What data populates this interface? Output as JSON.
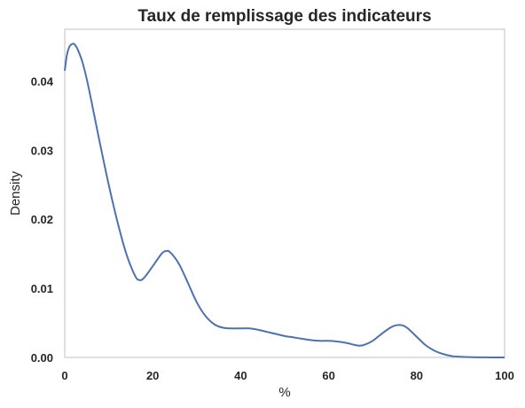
{
  "chart_data": {
    "type": "line",
    "title": "Taux de remplissage des indicateurs",
    "xlabel": "%",
    "ylabel": "Density",
    "xlim": [
      0,
      100
    ],
    "ylim": [
      0,
      0.0475
    ],
    "grid": false,
    "xticks": [
      0,
      20,
      40,
      60,
      80,
      100
    ],
    "xtick_labels": [
      "0",
      "20",
      "40",
      "60",
      "80",
      "100"
    ],
    "yticks": [
      0,
      0.01,
      0.02,
      0.03,
      0.04
    ],
    "ytick_labels": [
      "0.00",
      "0.01",
      "0.02",
      "0.03",
      "0.04"
    ],
    "series": [
      {
        "color": "#4c72b0",
        "x": [
          0,
          0.5,
          1,
          1.5,
          2,
          2.5,
          3,
          4,
          5,
          6,
          8,
          10,
          12,
          14,
          16,
          17,
          18,
          20,
          22,
          23,
          24,
          26,
          28,
          30,
          32,
          34,
          36,
          38,
          40,
          42,
          44,
          46,
          48,
          50,
          52,
          54,
          56,
          58,
          60,
          62,
          64,
          66,
          67,
          68,
          70,
          72,
          74,
          75,
          76,
          77,
          78,
          80,
          82,
          84,
          86,
          88,
          90,
          92,
          94,
          96,
          98,
          100
        ],
        "y": [
          0.0415,
          0.0438,
          0.0449,
          0.0453,
          0.0454,
          0.0451,
          0.0445,
          0.0428,
          0.0403,
          0.0373,
          0.031,
          0.025,
          0.0196,
          0.015,
          0.0118,
          0.0112,
          0.0115,
          0.0132,
          0.015,
          0.0154,
          0.0152,
          0.0135,
          0.0108,
          0.008,
          0.006,
          0.0048,
          0.0043,
          0.0042,
          0.0042,
          0.0042,
          0.004,
          0.0037,
          0.0034,
          0.0031,
          0.0029,
          0.0027,
          0.0025,
          0.0024,
          0.0024,
          0.0023,
          0.0021,
          0.0018,
          0.0017,
          0.0018,
          0.0024,
          0.0034,
          0.0043,
          0.0046,
          0.0047,
          0.0046,
          0.0042,
          0.003,
          0.0018,
          0.001,
          0.0005,
          0.0002,
          0.0001,
          5e-05,
          2e-05,
          1e-05,
          0,
          0
        ]
      }
    ]
  }
}
